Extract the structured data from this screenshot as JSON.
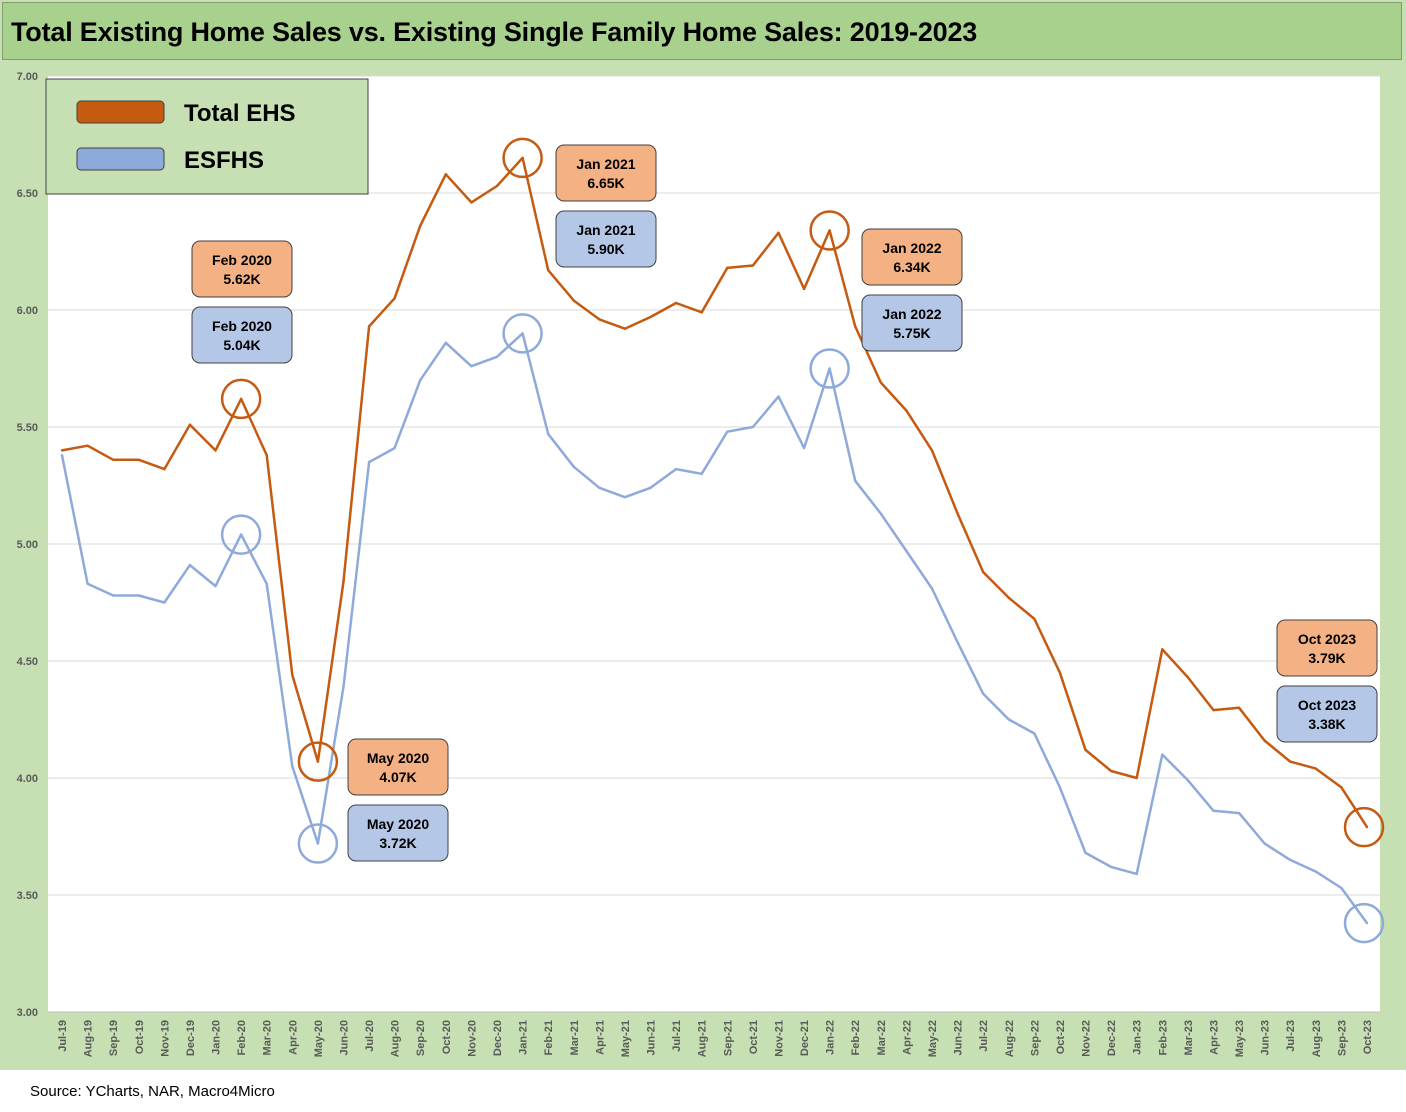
{
  "title": "Total Existing Home Sales vs. Existing Single Family Home Sales: 2019-2023",
  "source": "Source: YCharts, NAR, Macro4Micro",
  "colors": {
    "frame": "#c6e0b4",
    "title_bar": "#a9d18e",
    "ehs": "#c55a11",
    "esfhs": "#8eaadb",
    "ehs_callout": "#f4b183",
    "esfhs_callout": "#b4c7e7"
  },
  "chart_data": {
    "type": "line",
    "ylim": [
      3.0,
      7.0
    ],
    "yticks": [
      "3.00",
      "3.50",
      "4.00",
      "4.50",
      "5.00",
      "5.50",
      "6.00",
      "6.50",
      "7.00"
    ],
    "grid": true,
    "legend_position": "top-left",
    "x": [
      "Jul-19",
      "Aug-19",
      "Sep-19",
      "Oct-19",
      "Nov-19",
      "Dec-19",
      "Jan-20",
      "Feb-20",
      "Mar-20",
      "Apr-20",
      "May-20",
      "Jun-20",
      "Jul-20",
      "Aug-20",
      "Sep-20",
      "Oct-20",
      "Nov-20",
      "Dec-20",
      "Jan-21",
      "Feb-21",
      "Mar-21",
      "Apr-21",
      "May-21",
      "Jun-21",
      "Jul-21",
      "Aug-21",
      "Sep-21",
      "Oct-21",
      "Nov-21",
      "Dec-21",
      "Jan-22",
      "Feb-22",
      "Mar-22",
      "Apr-22",
      "May-22",
      "Jun-22",
      "Jul-22",
      "Aug-22",
      "Sep-22",
      "Oct-22",
      "Nov-22",
      "Dec-22",
      "Jan-23",
      "Feb-23",
      "Mar-23",
      "Apr-23",
      "May-23",
      "Jun-23",
      "Jul-23",
      "Aug-23",
      "Sep-23",
      "Oct-23"
    ],
    "series": [
      {
        "name": "Total EHS",
        "color": "#c55a11",
        "values": [
          5.4,
          5.42,
          5.36,
          5.36,
          5.32,
          5.51,
          5.4,
          5.62,
          5.38,
          4.44,
          4.07,
          4.84,
          5.93,
          6.05,
          6.36,
          6.58,
          6.46,
          6.53,
          6.65,
          6.17,
          6.04,
          5.96,
          5.92,
          5.97,
          6.03,
          5.99,
          6.18,
          6.19,
          6.33,
          6.09,
          6.34,
          5.93,
          5.69,
          5.57,
          5.4,
          5.13,
          4.88,
          4.77,
          4.68,
          4.45,
          4.12,
          4.03,
          4.0,
          4.55,
          4.43,
          4.29,
          4.3,
          4.16,
          4.07,
          4.04,
          3.96,
          3.79
        ]
      },
      {
        "name": "ESFHS",
        "color": "#8eaadb",
        "values": [
          5.38,
          4.83,
          4.78,
          4.78,
          4.75,
          4.91,
          4.82,
          5.04,
          4.83,
          4.05,
          3.72,
          4.39,
          5.35,
          5.41,
          5.7,
          5.86,
          5.76,
          5.8,
          5.9,
          5.47,
          5.33,
          5.24,
          5.2,
          5.24,
          5.32,
          5.3,
          5.48,
          5.5,
          5.63,
          5.41,
          5.75,
          5.27,
          5.13,
          4.97,
          4.81,
          4.58,
          4.36,
          4.25,
          4.19,
          3.96,
          3.68,
          3.62,
          3.59,
          4.1,
          3.99,
          3.86,
          3.85,
          3.72,
          3.65,
          3.6,
          3.53,
          3.38
        ]
      }
    ],
    "callouts": [
      {
        "series": "Total EHS",
        "index": 7,
        "month": "Feb 2020",
        "value": "5.62K"
      },
      {
        "series": "ESFHS",
        "index": 7,
        "month": "Feb 2020",
        "value": "5.04K"
      },
      {
        "series": "Total EHS",
        "index": 10,
        "month": "May 2020",
        "value": "4.07K"
      },
      {
        "series": "ESFHS",
        "index": 10,
        "month": "May 2020",
        "value": "3.72K"
      },
      {
        "series": "Total EHS",
        "index": 18,
        "month": "Jan 2021",
        "value": "6.65K"
      },
      {
        "series": "ESFHS",
        "index": 18,
        "month": "Jan 2021",
        "value": "5.90K"
      },
      {
        "series": "Total EHS",
        "index": 30,
        "month": "Jan 2022",
        "value": "6.34K"
      },
      {
        "series": "ESFHS",
        "index": 30,
        "month": "Jan 2022",
        "value": "5.75K"
      },
      {
        "series": "Total EHS",
        "index": 51,
        "month": "Oct 2023",
        "value": "3.79K"
      },
      {
        "series": "ESFHS",
        "index": 51,
        "month": "Oct 2023",
        "value": "3.38K"
      }
    ]
  }
}
